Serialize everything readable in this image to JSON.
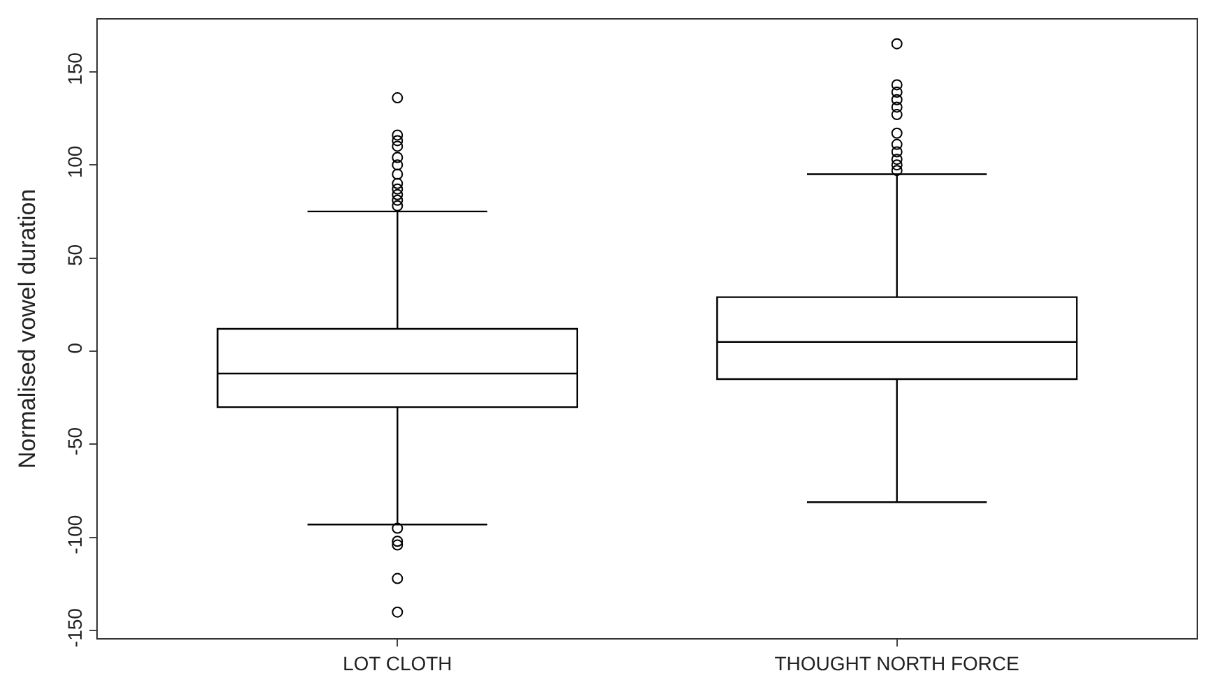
{
  "chart_data": {
    "type": "box",
    "ylabel": "Normalised vowel duration",
    "categories": [
      "LOT CLOTH",
      "THOUGHT NORTH FORCE"
    ],
    "boxes": [
      {
        "low": -93,
        "q1": -30,
        "median": -12,
        "q3": 12,
        "high": 75,
        "outliers": [
          136,
          116,
          113,
          110,
          104,
          100,
          95,
          90,
          87,
          84,
          81,
          78,
          -95,
          -102,
          -104,
          -122,
          -140
        ]
      },
      {
        "low": -81,
        "q1": -15,
        "median": 5,
        "q3": 29,
        "high": 95,
        "outliers": [
          165,
          143,
          139,
          135,
          131,
          127,
          117,
          111,
          107,
          103,
          100,
          97
        ]
      }
    ],
    "color": "#000000",
    "ylim": [
      -154,
      178
    ],
    "yticks": [
      -150,
      -100,
      -50,
      0,
      50,
      100,
      150
    ],
    "marker": "circle"
  }
}
